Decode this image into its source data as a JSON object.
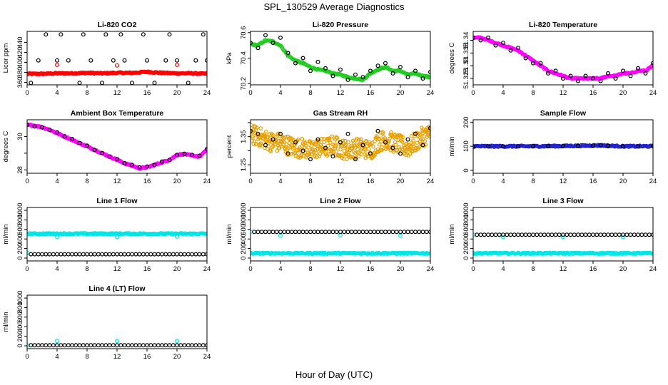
{
  "figure": {
    "title": "SPL_130529  Average Diagnostics",
    "xlabel": "Hour of Day (UTC)"
  },
  "colors": {
    "black": "#000000",
    "red": "#ff0000",
    "green": "#22cc22",
    "magenta": "#ff00ff",
    "orange": "#e8a000",
    "blue": "#2222cc",
    "cyan": "#00e5e5"
  },
  "chart_data": [
    {
      "type": "scatter",
      "title": "Li-820 CO2",
      "ylabel": "Licor ppm",
      "xlim": [
        0,
        24
      ],
      "ylim": [
        355,
        462
      ],
      "x_ticks": [
        0,
        4,
        8,
        12,
        16,
        20,
        24
      ],
      "y_ticks": [
        360,
        380,
        400,
        420,
        440
      ],
      "series": [
        {
          "color": "#ff0000",
          "dense": true,
          "x": [
            0,
            2,
            4,
            6,
            8,
            10,
            12,
            14,
            16,
            18,
            20,
            22,
            24
          ],
          "y": [
            377,
            377,
            378,
            378,
            379,
            378,
            379,
            379,
            381,
            379,
            378,
            378,
            377
          ]
        },
        {
          "color": "#000000",
          "x": [
            0.5,
            1.5,
            2.5,
            4,
            4.5,
            5.5,
            7,
            7.5,
            8.5,
            10,
            10.5,
            11.5,
            12.5,
            13,
            14,
            15.5,
            16,
            17,
            18.5,
            19,
            20,
            21.5,
            22.5,
            23.5,
            24
          ],
          "y": [
            359,
            404,
            456,
            404,
            456,
            404,
            359,
            456,
            404,
            359,
            456,
            404,
            456,
            404,
            359,
            456,
            404,
            359,
            404,
            456,
            404,
            359,
            404,
            456,
            404
          ]
        },
        {
          "color": "#ff0000",
          "x": [
            4,
            12,
            20
          ],
          "y": [
            395,
            394,
            395
          ]
        }
      ]
    },
    {
      "type": "scatter",
      "title": "Li-820 Pressure",
      "ylabel": "kPa",
      "xlim": [
        0,
        24
      ],
      "ylim": [
        70.19,
        70.61
      ],
      "x_ticks": [
        0,
        4,
        8,
        12,
        16,
        20,
        24
      ],
      "y_ticks": [
        70.2,
        70.4,
        70.6
      ],
      "series": [
        {
          "color": "#22cc22",
          "dense": true,
          "x": [
            0,
            1,
            2,
            3,
            4,
            5,
            6,
            7,
            8,
            9,
            10,
            11,
            12,
            13,
            14,
            15,
            16,
            17,
            18,
            19,
            20,
            21,
            22,
            23,
            24
          ],
          "y": [
            70.51,
            70.5,
            70.54,
            70.53,
            70.5,
            70.42,
            70.38,
            70.36,
            70.33,
            70.31,
            70.3,
            70.28,
            70.27,
            70.25,
            70.24,
            70.23,
            70.28,
            70.31,
            70.33,
            70.3,
            70.3,
            70.27,
            70.28,
            70.26,
            70.25
          ]
        },
        {
          "color": "#000000",
          "x": [
            0,
            1,
            2,
            3,
            4,
            5,
            6,
            7,
            8,
            9,
            10,
            11,
            12,
            13,
            14,
            15,
            16,
            17,
            18,
            19,
            20,
            21,
            22,
            23,
            24
          ],
          "y": [
            70.52,
            70.48,
            70.58,
            70.52,
            70.56,
            70.44,
            70.36,
            70.4,
            70.3,
            70.37,
            70.32,
            70.26,
            70.31,
            70.23,
            70.27,
            70.25,
            70.3,
            70.34,
            70.36,
            70.28,
            70.33,
            70.25,
            70.3,
            70.24,
            70.29
          ]
        }
      ]
    },
    {
      "type": "scatter",
      "title": "Li-820 Temperature",
      "ylabel": "degrees C",
      "xlim": [
        0,
        24
      ],
      "ylim": [
        51.3225,
        51.3435
      ],
      "x_ticks": [
        0,
        4,
        8,
        12,
        16,
        20,
        24
      ],
      "y_ticks": [
        51.325,
        51.33,
        51.335,
        51.34
      ],
      "series": [
        {
          "color": "#ff00ff",
          "dense": true,
          "x": [
            0,
            1,
            2,
            3,
            4,
            5,
            6,
            7,
            8,
            9,
            10,
            11,
            12,
            13,
            14,
            15,
            16,
            17,
            18,
            19,
            20,
            21,
            22,
            23,
            24
          ],
          "y": [
            51.341,
            51.341,
            51.34,
            51.339,
            51.338,
            51.337,
            51.336,
            51.334,
            51.332,
            51.33,
            51.328,
            51.327,
            51.326,
            51.325,
            51.325,
            51.325,
            51.325,
            51.325,
            51.326,
            51.326,
            51.327,
            51.327,
            51.328,
            51.328,
            51.33
          ]
        },
        {
          "color": "#000000",
          "x": [
            0,
            1,
            2,
            3,
            4,
            5,
            6,
            7,
            8,
            9,
            10,
            11,
            12,
            13,
            14,
            15,
            16,
            17,
            18,
            19,
            20,
            21,
            22,
            23,
            24
          ],
          "y": [
            51.341,
            51.34,
            51.341,
            51.338,
            51.339,
            51.336,
            51.337,
            51.333,
            51.331,
            51.331,
            51.327,
            51.328,
            51.325,
            51.326,
            51.324,
            51.326,
            51.325,
            51.324,
            51.327,
            51.325,
            51.328,
            51.326,
            51.329,
            51.327,
            51.331
          ]
        }
      ]
    },
    {
      "type": "scatter",
      "title": "Ambient Box Temperature",
      "ylabel": "degrees C",
      "xlim": [
        0,
        24
      ],
      "ylim": [
        27.8,
        31.0
      ],
      "x_ticks": [
        0,
        4,
        8,
        12,
        16,
        20,
        24
      ],
      "y_ticks": [
        28,
        30
      ],
      "y_minor_ticks": [
        29
      ],
      "series": [
        {
          "color": "#ff00ff",
          "dense": true,
          "x": [
            0,
            1,
            2,
            3,
            4,
            5,
            6,
            7,
            8,
            9,
            10,
            11,
            12,
            13,
            14,
            15,
            16,
            17,
            18,
            19,
            20,
            21,
            22,
            23,
            24
          ],
          "y": [
            30.7,
            30.65,
            30.55,
            30.4,
            30.2,
            30.0,
            29.8,
            29.6,
            29.4,
            29.2,
            29.0,
            28.8,
            28.6,
            28.4,
            28.25,
            28.1,
            28.15,
            28.3,
            28.45,
            28.6,
            28.9,
            28.95,
            28.85,
            28.8,
            29.2
          ]
        },
        {
          "color": "#000000",
          "x": [
            0,
            1,
            2,
            3,
            4,
            5,
            6,
            7,
            8,
            9,
            10,
            11,
            12,
            13,
            14,
            15,
            16,
            17,
            18,
            19,
            20,
            21,
            22,
            23,
            24
          ],
          "y": [
            30.7,
            30.6,
            30.55,
            30.4,
            30.25,
            30.0,
            29.85,
            29.6,
            29.45,
            29.2,
            29.0,
            28.8,
            28.65,
            28.4,
            28.3,
            28.15,
            28.2,
            28.3,
            28.5,
            28.6,
            28.9,
            28.95,
            28.9,
            28.85,
            29.25
          ]
        }
      ]
    },
    {
      "type": "scatter",
      "title": "Gas Stream RH",
      "ylabel": "percent",
      "xlim": [
        0,
        24
      ],
      "ylim": [
        1.22,
        1.41
      ],
      "x_ticks": [
        0,
        4,
        8,
        12,
        16,
        20,
        24
      ],
      "y_ticks": [
        1.25,
        1.35
      ],
      "y_minor_ticks": [
        1.3,
        1.4
      ],
      "series": [
        {
          "color": "#e8a000",
          "dense": true,
          "band": 0.035,
          "x": [
            0,
            1,
            2,
            3,
            4,
            5,
            6,
            7,
            8,
            9,
            10,
            11,
            12,
            13,
            14,
            15,
            16,
            17,
            18,
            19,
            20,
            21,
            22,
            23,
            24
          ],
          "y": [
            1.36,
            1.35,
            1.34,
            1.33,
            1.33,
            1.32,
            1.31,
            1.31,
            1.3,
            1.31,
            1.31,
            1.32,
            1.31,
            1.3,
            1.31,
            1.31,
            1.3,
            1.33,
            1.34,
            1.33,
            1.32,
            1.31,
            1.33,
            1.35,
            1.36
          ]
        },
        {
          "color": "#000000",
          "x": [
            0,
            1,
            2,
            3,
            4,
            5,
            6,
            7,
            8,
            9,
            10,
            11,
            12,
            13,
            14,
            15,
            16,
            17,
            18,
            19,
            20,
            21,
            22,
            23,
            24
          ],
          "y": [
            1.37,
            1.36,
            1.32,
            1.34,
            1.36,
            1.29,
            1.33,
            1.3,
            1.27,
            1.34,
            1.31,
            1.28,
            1.33,
            1.36,
            1.27,
            1.32,
            1.29,
            1.37,
            1.33,
            1.31,
            1.29,
            1.34,
            1.36,
            1.32,
            1.38
          ]
        }
      ]
    },
    {
      "type": "scatter",
      "title": "Sample Flow",
      "ylabel": "ml/min",
      "xlim": [
        0,
        24
      ],
      "ylim": [
        -12,
        210
      ],
      "x_ticks": [
        0,
        4,
        8,
        12,
        16,
        20,
        24
      ],
      "y_ticks": [
        0,
        100,
        200
      ],
      "series": [
        {
          "color": "#2222cc",
          "dense": true,
          "x": [
            0,
            4,
            8,
            12,
            16,
            17,
            18,
            20,
            24
          ],
          "y": [
            100,
            100,
            100,
            101,
            103,
            104,
            102,
            100,
            100
          ]
        },
        {
          "color": "#000000",
          "x": [
            0,
            2,
            4,
            6,
            8,
            10,
            12,
            14,
            16,
            17,
            18,
            20,
            22,
            24
          ],
          "y": [
            100,
            100,
            100,
            100,
            101,
            101,
            101,
            101,
            103,
            104,
            102,
            100,
            100,
            100
          ]
        }
      ]
    },
    {
      "type": "scatter",
      "title": "Line 1 Flow",
      "ylabel": "ml/min",
      "xlim": [
        0,
        24
      ],
      "ylim": [
        -60,
        1060
      ],
      "x_ticks": [
        0,
        4,
        8,
        12,
        16,
        20,
        24
      ],
      "y_ticks": [
        0,
        200,
        400,
        600,
        800,
        1000
      ],
      "series": [
        {
          "color": "#00e5e5",
          "dense": true,
          "x": [
            0,
            24
          ],
          "y": [
            510,
            510
          ]
        },
        {
          "color": "#00e5e5",
          "x": [
            4,
            12,
            20,
            0
          ],
          "y": [
            440,
            440,
            450,
            110
          ]
        },
        {
          "color": "#000000",
          "step": 0.5,
          "x": [
            0.5,
            24
          ],
          "y": [
            80,
            80
          ]
        }
      ]
    },
    {
      "type": "scatter",
      "title": "Line 2 Flow",
      "ylabel": "ml/min",
      "xlim": [
        0,
        24
      ],
      "ylim": [
        -60,
        1060
      ],
      "x_ticks": [
        0,
        4,
        8,
        12,
        16,
        20,
        24
      ],
      "y_ticks": [
        0,
        200,
        400,
        600,
        800,
        1000
      ],
      "series": [
        {
          "color": "#00e5e5",
          "dense": true,
          "x": [
            0,
            24
          ],
          "y": [
            100,
            100
          ]
        },
        {
          "color": "#00e5e5",
          "x": [
            4,
            12,
            20,
            0
          ],
          "y": [
            470,
            480,
            470,
            550
          ]
        },
        {
          "color": "#000000",
          "step": 0.5,
          "x": [
            0.5,
            24
          ],
          "y": [
            550,
            550
          ]
        }
      ]
    },
    {
      "type": "scatter",
      "title": "Line 3 Flow",
      "ylabel": "ml/min",
      "xlim": [
        0,
        24
      ],
      "ylim": [
        -60,
        1060
      ],
      "x_ticks": [
        0,
        4,
        8,
        12,
        16,
        20,
        24
      ],
      "y_ticks": [
        0,
        200,
        400,
        600,
        800,
        1000
      ],
      "series": [
        {
          "color": "#00e5e5",
          "dense": true,
          "x": [
            0,
            24
          ],
          "y": [
            100,
            100
          ]
        },
        {
          "color": "#00e5e5",
          "x": [
            4,
            12,
            20,
            0
          ],
          "y": [
            440,
            440,
            440,
            490
          ]
        },
        {
          "color": "#000000",
          "step": 0.5,
          "x": [
            0.5,
            24
          ],
          "y": [
            490,
            490
          ]
        }
      ]
    },
    {
      "type": "scatter",
      "title": "Line 4 (LT) Flow",
      "ylabel": "ml/min",
      "xlim": [
        0,
        24
      ],
      "ylim": [
        -60,
        1060
      ],
      "x_ticks": [
        0,
        4,
        8,
        12,
        16,
        20,
        24
      ],
      "y_ticks": [
        0,
        200,
        400,
        600,
        800,
        1000
      ],
      "series": [
        {
          "color": "#00e5e5",
          "x": [
            4,
            12,
            20,
            0
          ],
          "y": [
            100,
            100,
            100,
            10
          ]
        },
        {
          "color": "#000000",
          "step": 0.5,
          "x": [
            0.5,
            24
          ],
          "y": [
            10,
            10
          ]
        }
      ]
    }
  ]
}
